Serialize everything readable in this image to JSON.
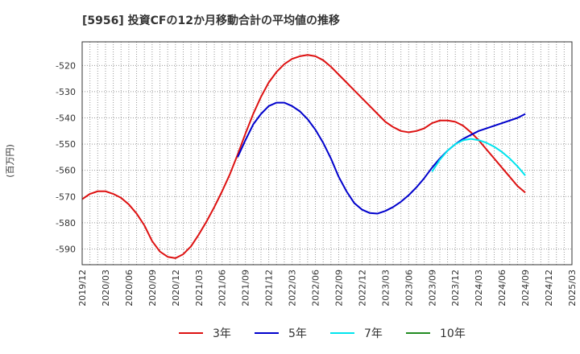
{
  "chart_data": {
    "type": "line",
    "title": "[5956]  投資CFの12か月移動合計の平均値の推移",
    "ylabel": "(百万円)",
    "xlabel": "",
    "ylim": [
      -596,
      -511
    ],
    "yticks": [
      -520,
      -530,
      -540,
      -550,
      -560,
      -570,
      -580,
      -590
    ],
    "xticks": [
      "2019/12",
      "2020/03",
      "2020/06",
      "2020/09",
      "2020/12",
      "2021/03",
      "2021/06",
      "2021/09",
      "2021/12",
      "2022/03",
      "2022/06",
      "2022/09",
      "2022/12",
      "2023/03",
      "2023/06",
      "2023/09",
      "2023/12",
      "2024/03",
      "2024/06",
      "2024/09",
      "2024/12",
      "2025/03"
    ],
    "grid": true,
    "legend_position": "bottom",
    "series": [
      {
        "name": "3年",
        "color": "#dd1111",
        "points": [
          [
            "2019/12",
            -571
          ],
          [
            "2020/01",
            -569
          ],
          [
            "2020/02",
            -568
          ],
          [
            "2020/03",
            -568
          ],
          [
            "2020/04",
            -569
          ],
          [
            "2020/05",
            -570.5
          ],
          [
            "2020/06",
            -573
          ],
          [
            "2020/07",
            -576.5
          ],
          [
            "2020/08",
            -581
          ],
          [
            "2020/09",
            -587
          ],
          [
            "2020/10",
            -591
          ],
          [
            "2020/11",
            -593
          ],
          [
            "2020/12",
            -593.5
          ],
          [
            "2021/01",
            -592
          ],
          [
            "2021/02",
            -589
          ],
          [
            "2021/03",
            -584.5
          ],
          [
            "2021/04",
            -579.5
          ],
          [
            "2021/05",
            -574
          ],
          [
            "2021/06",
            -568
          ],
          [
            "2021/07",
            -561.5
          ],
          [
            "2021/08",
            -554
          ],
          [
            "2021/09",
            -546
          ],
          [
            "2021/10",
            -538.5
          ],
          [
            "2021/11",
            -532
          ],
          [
            "2021/12",
            -526.5
          ],
          [
            "2022/01",
            -522.5
          ],
          [
            "2022/02",
            -519.5
          ],
          [
            "2022/03",
            -517.5
          ],
          [
            "2022/04",
            -516.5
          ],
          [
            "2022/05",
            -516
          ],
          [
            "2022/06",
            -516.5
          ],
          [
            "2022/07",
            -518
          ],
          [
            "2022/08",
            -520.5
          ],
          [
            "2022/09",
            -523.5
          ],
          [
            "2022/10",
            -526.5
          ],
          [
            "2022/11",
            -529.5
          ],
          [
            "2022/12",
            -532.5
          ],
          [
            "2023/01",
            -535.5
          ],
          [
            "2023/02",
            -538.5
          ],
          [
            "2023/03",
            -541.5
          ],
          [
            "2023/04",
            -543.5
          ],
          [
            "2023/05",
            -545
          ],
          [
            "2023/06",
            -545.5
          ],
          [
            "2023/07",
            -545
          ],
          [
            "2023/08",
            -544
          ],
          [
            "2023/09",
            -542
          ],
          [
            "2023/10",
            -541
          ],
          [
            "2023/11",
            -541
          ],
          [
            "2023/12",
            -541.5
          ],
          [
            "2024/01",
            -543
          ],
          [
            "2024/02",
            -545.5
          ],
          [
            "2024/03",
            -548.5
          ],
          [
            "2024/04",
            -552
          ],
          [
            "2024/05",
            -555.5
          ],
          [
            "2024/06",
            -559
          ],
          [
            "2024/07",
            -562.5
          ],
          [
            "2024/08",
            -566
          ],
          [
            "2024/09",
            -568.5
          ]
        ]
      },
      {
        "name": "5年",
        "color": "#0000cc",
        "points": [
          [
            "2021/08",
            -555
          ],
          [
            "2021/09",
            -548.5
          ],
          [
            "2021/10",
            -542.5
          ],
          [
            "2021/11",
            -538.5
          ],
          [
            "2021/12",
            -535.5
          ],
          [
            "2022/01",
            -534.2
          ],
          [
            "2022/02",
            -534.2
          ],
          [
            "2022/03",
            -535.5
          ],
          [
            "2022/04",
            -537.5
          ],
          [
            "2022/05",
            -540.5
          ],
          [
            "2022/06",
            -544.5
          ],
          [
            "2022/07",
            -549.5
          ],
          [
            "2022/08",
            -555.5
          ],
          [
            "2022/09",
            -562.5
          ],
          [
            "2022/10",
            -568
          ],
          [
            "2022/11",
            -572.5
          ],
          [
            "2022/12",
            -575
          ],
          [
            "2023/01",
            -576.3
          ],
          [
            "2023/02",
            -576.5
          ],
          [
            "2023/03",
            -575.5
          ],
          [
            "2023/04",
            -574
          ],
          [
            "2023/05",
            -572
          ],
          [
            "2023/06",
            -569.5
          ],
          [
            "2023/07",
            -566.5
          ],
          [
            "2023/08",
            -563
          ],
          [
            "2023/09",
            -559
          ],
          [
            "2023/10",
            -555.5
          ],
          [
            "2023/11",
            -552.5
          ],
          [
            "2023/12",
            -550
          ],
          [
            "2024/01",
            -548
          ],
          [
            "2024/02",
            -546.5
          ],
          [
            "2024/03",
            -545
          ],
          [
            "2024/04",
            -544
          ],
          [
            "2024/05",
            -543
          ],
          [
            "2024/06",
            -542
          ],
          [
            "2024/07",
            -541
          ],
          [
            "2024/08",
            -540
          ],
          [
            "2024/09",
            -538.5
          ]
        ]
      },
      {
        "name": "7年",
        "color": "#00e5ee",
        "points": [
          [
            "2023/09",
            -560.5
          ],
          [
            "2023/10",
            -556
          ],
          [
            "2023/11",
            -552.5
          ],
          [
            "2023/12",
            -550
          ],
          [
            "2024/01",
            -548.5
          ],
          [
            "2024/02",
            -548
          ],
          [
            "2024/03",
            -548.5
          ],
          [
            "2024/04",
            -549.5
          ],
          [
            "2024/05",
            -551
          ],
          [
            "2024/06",
            -553
          ],
          [
            "2024/07",
            -555.5
          ],
          [
            "2024/08",
            -558.5
          ],
          [
            "2024/09",
            -562
          ]
        ]
      },
      {
        "name": "10年",
        "color": "#228b22",
        "points": []
      }
    ]
  }
}
